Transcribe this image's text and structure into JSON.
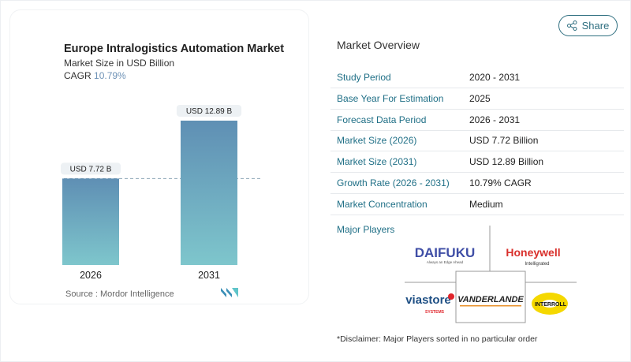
{
  "header": {
    "share_label": "Share",
    "share_icon": "share-icon"
  },
  "chart_card": {
    "title": "Europe Intralogistics Automation Market",
    "subtitle": "Market Size in USD Billion",
    "cagr_label": "CAGR",
    "cagr_value": "10.79%",
    "source": "Source :  Mordor Intelligence"
  },
  "chart_data": {
    "type": "bar",
    "title": "Europe Intralogistics Automation Market",
    "ylabel": "Market Size in USD Billion",
    "categories": [
      "2026",
      "2031"
    ],
    "values": [
      7.72,
      12.89
    ],
    "data_labels": [
      "USD 7.72 B",
      "USD 12.89 B"
    ],
    "colors": {
      "top": "#5f8fb4",
      "bottom": "#7ec6cc"
    },
    "reference_line": 7.72,
    "grid": false
  },
  "overview": {
    "title": "Market Overview",
    "rows": [
      {
        "label": "Study Period",
        "value": "2020 - 2031"
      },
      {
        "label": "Base Year For Estimation",
        "value": "2025"
      },
      {
        "label": "Forecast Data Period",
        "value": "2026 - 2031"
      },
      {
        "label": "Market Size (2026)",
        "value": "USD 7.72 Billion"
      },
      {
        "label": "Market Size (2031)",
        "value": "USD 12.89 Billion"
      },
      {
        "label": "Growth Rate (2026 - 2031)",
        "value": "10.79% CAGR"
      },
      {
        "label": "Market Concentration",
        "value": "Medium"
      }
    ]
  },
  "major_players": {
    "title": "Major Players",
    "logos": [
      "DAIFUKU",
      "Always an Edge Ahead",
      "Honeywell",
      "Intelligrated",
      "viastore",
      "SYSTEMS",
      "VANDERLANDE",
      "INTERROLL"
    ]
  },
  "disclaimer": "*Disclaimer: Major Players sorted in no particular order"
}
